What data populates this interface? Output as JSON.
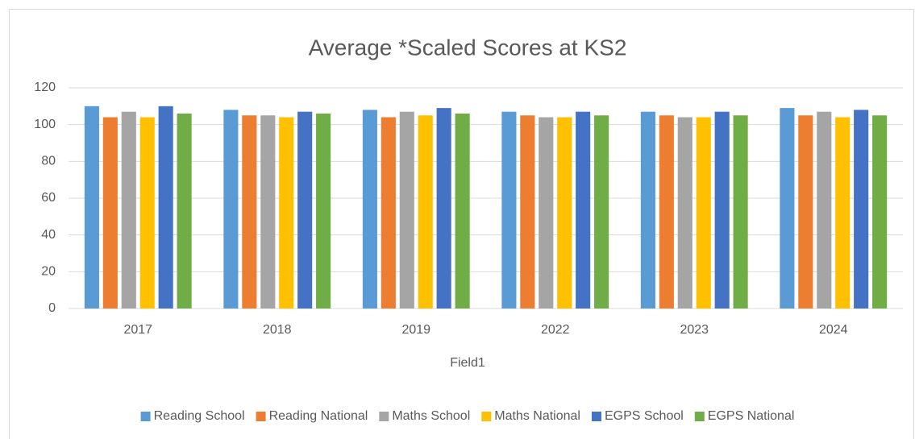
{
  "chart_data": {
    "type": "bar",
    "title": "Average *Scaled Scores at KS2",
    "x_label": "Field1",
    "categories": [
      "2017",
      "2018",
      "2019",
      "2022",
      "2023",
      "2024"
    ],
    "series": [
      {
        "name": "Reading School",
        "color": "#5b9bd5",
        "values": [
          110,
          108,
          108,
          107,
          107,
          109
        ]
      },
      {
        "name": "Reading National",
        "color": "#ed7d31",
        "values": [
          104,
          105,
          104,
          105,
          105,
          105
        ]
      },
      {
        "name": "Maths School",
        "color": "#a5a5a5",
        "values": [
          107,
          105,
          107,
          104,
          104,
          107
        ]
      },
      {
        "name": "Maths National",
        "color": "#ffc000",
        "values": [
          104,
          104,
          105,
          104,
          104,
          104
        ]
      },
      {
        "name": "EGPS School",
        "color": "#4472c4",
        "values": [
          110,
          107,
          109,
          107,
          107,
          108
        ]
      },
      {
        "name": "EGPS National",
        "color": "#70ad47",
        "values": [
          106,
          106,
          106,
          105,
          105,
          105
        ]
      }
    ],
    "ylim": [
      0,
      120
    ],
    "yticks": [
      0,
      20,
      40,
      60,
      80,
      100,
      120
    ],
    "grid": true,
    "legend": "bottom"
  }
}
